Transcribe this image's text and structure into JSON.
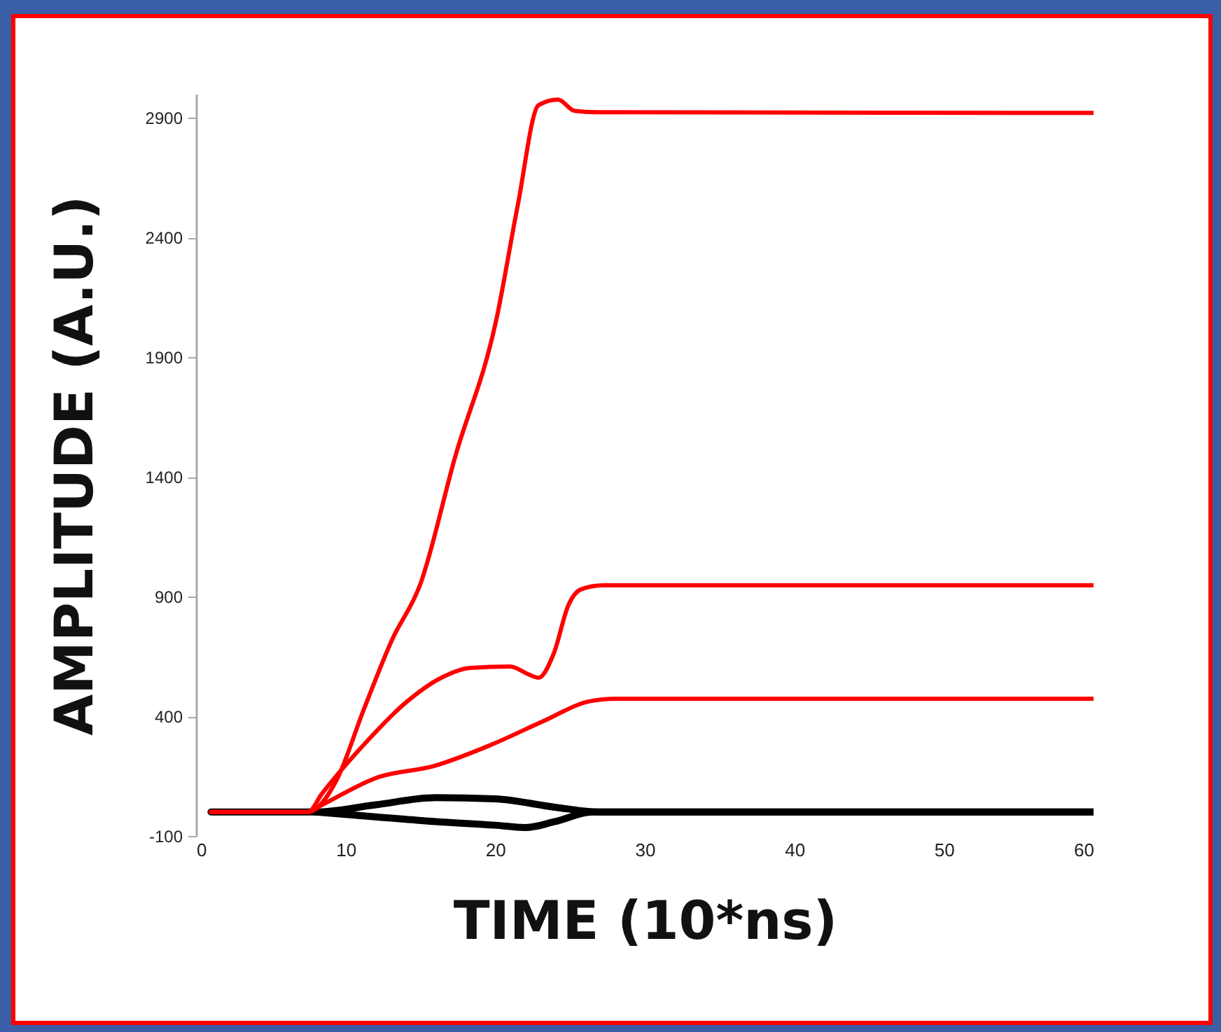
{
  "chart_data": {
    "type": "line",
    "xlabel": "TIME (10*ns)",
    "ylabel": "AMPLITUDE (A.U.)",
    "xlim": [
      0,
      60
    ],
    "xticks": [
      0,
      10,
      20,
      30,
      40,
      50,
      60
    ],
    "ylim": [
      -100,
      3000
    ],
    "yticks": [
      -100,
      400,
      900,
      1400,
      1900,
      2400,
      2900
    ],
    "grid": false,
    "legend": false,
    "marker": "none",
    "line_style": "solid",
    "series": [
      {
        "color": "#000000",
        "x": [
          1,
          8,
          12,
          16,
          20,
          24,
          27,
          60
        ],
        "values": [
          0,
          0,
          30,
          60,
          55,
          20,
          0,
          0
        ]
      },
      {
        "color": "#000000",
        "x": [
          8,
          12,
          16,
          20,
          22,
          24,
          26.5,
          60
        ],
        "values": [
          0,
          -20,
          -40,
          -55,
          -65,
          -40,
          0,
          0
        ]
      },
      {
        "color": "#ff0000",
        "x": [
          1,
          7.5,
          8.4,
          12.2,
          15.9,
          19.7,
          23.4,
          26.2,
          28.1,
          60
        ],
        "values": [
          0,
          0,
          29,
          146,
          192,
          280,
          385,
          461,
          473,
          473
        ]
      },
      {
        "color": "#ff0000",
        "x": [
          1,
          7.5,
          8.4,
          11.2,
          14,
          16.4,
          18.3,
          21,
          22.3,
          22.9,
          23.9,
          24.9,
          25.7,
          27.2,
          60
        ],
        "values": [
          0,
          0,
          75,
          280,
          456,
          561,
          602,
          608,
          573,
          561,
          660,
          865,
          929,
          947,
          947
        ]
      },
      {
        "color": "#ff0000",
        "x": [
          1,
          7.5,
          9.4,
          11.2,
          13.1,
          15,
          17.3,
          20.1,
          21.5,
          22.9,
          24.2,
          25.3,
          26.7,
          60
        ],
        "values": [
          0,
          0,
          134,
          426,
          719,
          953,
          1479,
          2064,
          2532,
          2953,
          2976,
          2929,
          2923,
          2920
        ]
      }
    ]
  }
}
